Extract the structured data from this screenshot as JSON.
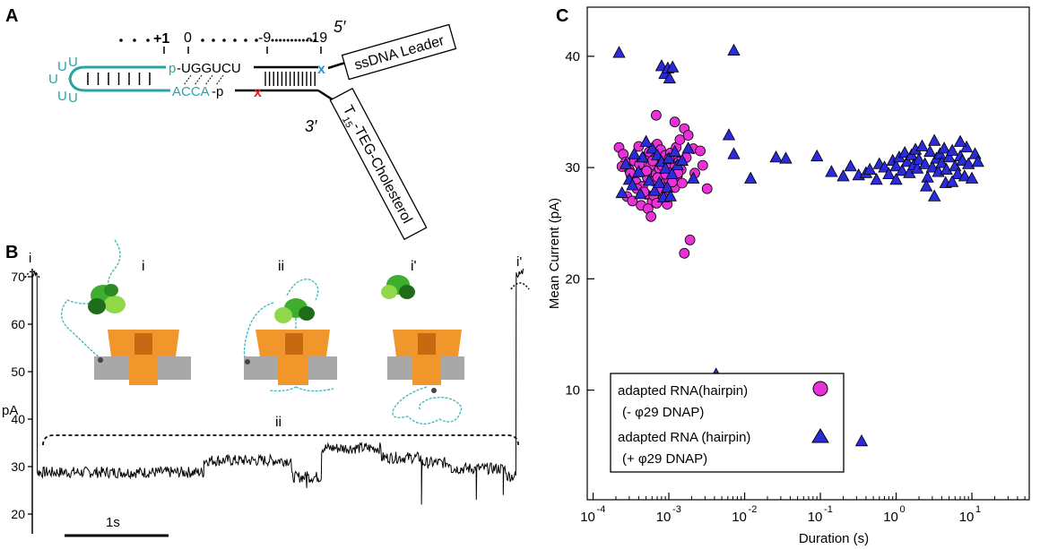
{
  "panel_a": {
    "letter": "A",
    "pos_plus1": "+1",
    "pos_0": "0",
    "pos_m9": "-9",
    "pos_m19": "-19",
    "five_prime": "5′",
    "three_prime": "3′",
    "top_seq_p": "p",
    "top_seq": "-UGGUCU",
    "bottom_seq": "ACCA",
    "bottom_p": "-p",
    "abasic_top": "x",
    "abasic_bottom": "x",
    "leader_label": "ssDNA Leader",
    "cholesterol_t": "T",
    "cholesterol_sub": "15",
    "cholesterol_rest": "-TEG-Cholesterol",
    "loop_letters": [
      "U",
      "U",
      "U",
      "U",
      "U"
    ],
    "colors": {
      "rna": "#2aa5a5",
      "top_x": "#1a9ed8",
      "bottom_x": "#e0202a"
    }
  },
  "panel_b": {
    "letter": "B",
    "trace_label_i": "i",
    "trace_label_ip": "i'",
    "state_labels": [
      "i",
      "ii",
      "i'"
    ],
    "bracket_label": "ii",
    "y_unit": "pA",
    "y_ticks": [
      20,
      30,
      40,
      50,
      60,
      70
    ],
    "scale_bar": "1s",
    "colors": {
      "protein": "#f0962a",
      "enzyme": "#3fae2e",
      "membrane": "#9a9a9a",
      "strand": "#3fb5b5"
    }
  },
  "panel_c": {
    "letter": "C",
    "legend": {
      "entry1_line1": "adapted RNA(hairpin)",
      "entry1_line2": "(- φ29 DNAP)",
      "entry2_line1": "adapted RNA (hairpin)",
      "entry2_line2": "(+ φ29 DNAP)"
    }
  },
  "chart_data": {
    "type": "scatter",
    "title": "",
    "xlabel": "Duration (s)",
    "ylabel": "Mean Current (pA)",
    "x_scale": "log",
    "xlim": [
      0.0001,
      30
    ],
    "ylim": [
      2,
      42
    ],
    "x_ticks": [
      "10",
      "10",
      "10",
      "10",
      "10",
      "10"
    ],
    "x_tick_exponents": [
      "-4",
      "-3",
      "-2",
      "-1",
      "0",
      "1"
    ],
    "y_ticks": [
      10,
      20,
      30,
      40
    ],
    "grid": false,
    "legend_position": "bottom-left",
    "series": [
      {
        "name": "adapted RNA(hairpin) (- φ29 DNAP)",
        "marker": "circle",
        "color": "#e832d8",
        "points": [
          [
            0.00022,
            31.8
          ],
          [
            0.00025,
            31.2
          ],
          [
            0.00027,
            30.5
          ],
          [
            0.0003,
            29.8
          ],
          [
            0.00032,
            29.2
          ],
          [
            0.00035,
            30.6
          ],
          [
            0.00037,
            28.7
          ],
          [
            0.0004,
            31.9
          ],
          [
            0.00042,
            29.6
          ],
          [
            0.00045,
            28.3
          ],
          [
            0.00048,
            30.9
          ],
          [
            0.0005,
            27.6
          ],
          [
            0.00052,
            29.1
          ],
          [
            0.00055,
            31.4
          ],
          [
            0.00057,
            30.2
          ],
          [
            0.0006,
            26.9
          ],
          [
            0.00062,
            28.8
          ],
          [
            0.00065,
            30.8
          ],
          [
            0.00068,
            29.4
          ],
          [
            0.0007,
            32.1
          ],
          [
            0.00072,
            27.2
          ],
          [
            0.00075,
            29.9
          ],
          [
            0.00078,
            31.6
          ],
          [
            0.0008,
            28.5
          ],
          [
            0.00083,
            30.4
          ],
          [
            0.00086,
            29.0
          ],
          [
            0.0009,
            31.1
          ],
          [
            0.00093,
            27.9
          ],
          [
            0.00097,
            30.0
          ],
          [
            0.001,
            28.9
          ],
          [
            0.00105,
            31.3
          ],
          [
            0.0011,
            29.6
          ],
          [
            0.00115,
            30.7
          ],
          [
            0.0012,
            28.2
          ],
          [
            0.00125,
            31.8
          ],
          [
            0.0013,
            29.3
          ],
          [
            0.00135,
            30.5
          ],
          [
            0.0014,
            32.5
          ],
          [
            0.00145,
            29.8
          ],
          [
            0.0015,
            28.6
          ],
          [
            0.00028,
            27.4
          ],
          [
            0.00033,
            27.0
          ],
          [
            0.00038,
            28.1
          ],
          [
            0.00043,
            26.6
          ],
          [
            0.00047,
            27.8
          ],
          [
            0.00053,
            26.3
          ],
          [
            0.00058,
            25.6
          ],
          [
            0.00063,
            27.5
          ],
          [
            0.00069,
            26.8
          ],
          [
            0.00074,
            28.0
          ],
          [
            0.00085,
            27.3
          ],
          [
            0.00095,
            26.7
          ],
          [
            0.00068,
            34.7
          ],
          [
            0.0012,
            34.1
          ],
          [
            0.0016,
            33.5
          ],
          [
            0.0018,
            32.9
          ],
          [
            0.0021,
            31.7
          ],
          [
            0.0026,
            31.5
          ],
          [
            0.0032,
            28.1
          ],
          [
            0.0019,
            23.5
          ],
          [
            0.0016,
            22.3
          ],
          [
            0.0022,
            29.5
          ],
          [
            0.0028,
            30.2
          ],
          [
            0.0017,
            30.9
          ],
          [
            0.00024,
            30.1
          ],
          [
            0.00031,
            29.5
          ],
          [
            0.00041,
            30.3
          ],
          [
            0.00051,
            29.7
          ],
          [
            0.00061,
            30.6
          ],
          [
            0.00071,
            29.1
          ],
          [
            0.00081,
            30.2
          ],
          [
            0.00091,
            29.4
          ],
          [
            0.00101,
            30.8
          ],
          [
            0.00111,
            28.7
          ],
          [
            0.00121,
            30.1
          ],
          [
            0.00131,
            29.5
          ]
        ]
      },
      {
        "name": "adapted RNA (hairpin) (+ φ29 DNAP)",
        "marker": "triangle",
        "color": "#2b2bd9",
        "points": [
          [
            0.00022,
            40.3
          ],
          [
            0.0008,
            39.1
          ],
          [
            0.00088,
            38.4
          ],
          [
            0.00097,
            38.9
          ],
          [
            0.00102,
            38.0
          ],
          [
            0.00112,
            39.0
          ],
          [
            0.0072,
            40.5
          ],
          [
            0.0006,
            31.7
          ],
          [
            0.0007,
            31.1
          ],
          [
            0.0008,
            30.5
          ],
          [
            0.0009,
            29.9
          ],
          [
            0.001,
            30.8
          ],
          [
            0.0011,
            29.4
          ],
          [
            0.0012,
            31.4
          ],
          [
            0.0013,
            30.2
          ],
          [
            0.0005,
            32.3
          ],
          [
            0.00045,
            30.9
          ],
          [
            0.0004,
            29.6
          ],
          [
            0.00035,
            31.2
          ],
          [
            0.0003,
            28.9
          ],
          [
            0.00027,
            30.3
          ],
          [
            0.00024,
            27.7
          ],
          [
            0.00033,
            28.4
          ],
          [
            0.00042,
            27.6
          ],
          [
            0.00055,
            28.8
          ],
          [
            0.00065,
            27.9
          ],
          [
            0.00075,
            28.6
          ],
          [
            0.00085,
            27.3
          ],
          [
            0.00095,
            28.2
          ],
          [
            0.00105,
            27.4
          ],
          [
            0.0015,
            30.6
          ],
          [
            0.0018,
            31.7
          ],
          [
            0.0021,
            29.0
          ],
          [
            0.0062,
            32.9
          ],
          [
            0.0072,
            31.2
          ],
          [
            0.012,
            29.0
          ],
          [
            0.026,
            30.9
          ],
          [
            0.035,
            30.8
          ],
          [
            0.09,
            31.0
          ],
          [
            0.14,
            29.6
          ],
          [
            0.2,
            29.2
          ],
          [
            0.25,
            30.1
          ],
          [
            0.32,
            29.3
          ],
          [
            0.4,
            29.5
          ],
          [
            0.45,
            29.8
          ],
          [
            0.55,
            28.9
          ],
          [
            0.6,
            30.3
          ],
          [
            0.7,
            30.0
          ],
          [
            0.8,
            29.4
          ],
          [
            0.9,
            30.6
          ],
          [
            1.0,
            30.1
          ],
          [
            1.1,
            30.9
          ],
          [
            1.2,
            29.7
          ],
          [
            1.3,
            31.3
          ],
          [
            1.4,
            30.5
          ],
          [
            1.5,
            29.5
          ],
          [
            1.6,
            31.1
          ],
          [
            1.7,
            30.2
          ],
          [
            1.8,
            31.6
          ],
          [
            1.9,
            29.9
          ],
          [
            2.0,
            30.7
          ],
          [
            2.2,
            31.9
          ],
          [
            2.4,
            30.3
          ],
          [
            2.6,
            29.1
          ],
          [
            2.8,
            31.4
          ],
          [
            3.0,
            30.0
          ],
          [
            3.2,
            32.4
          ],
          [
            3.4,
            30.8
          ],
          [
            3.6,
            29.6
          ],
          [
            3.8,
            31.2
          ],
          [
            4.0,
            30.4
          ],
          [
            4.3,
            31.7
          ],
          [
            4.6,
            29.8
          ],
          [
            5.0,
            30.9
          ],
          [
            5.5,
            31.5
          ],
          [
            6.0,
            30.1
          ],
          [
            6.5,
            29.4
          ],
          [
            7.0,
            31.0
          ],
          [
            7.5,
            30.6
          ],
          [
            8.0,
            29.2
          ],
          [
            8.5,
            31.8
          ],
          [
            9.0,
            30.3
          ],
          [
            10.0,
            29.0
          ],
          [
            11.0,
            31.2
          ],
          [
            12.0,
            30.5
          ],
          [
            3.2,
            27.4
          ],
          [
            2.5,
            28.3
          ],
          [
            4.5,
            28.6
          ],
          [
            1.0,
            28.9
          ],
          [
            5.5,
            28.7
          ],
          [
            7.0,
            32.3
          ],
          [
            0.0042,
            11.4
          ],
          [
            0.35,
            5.4
          ]
        ]
      }
    ]
  }
}
